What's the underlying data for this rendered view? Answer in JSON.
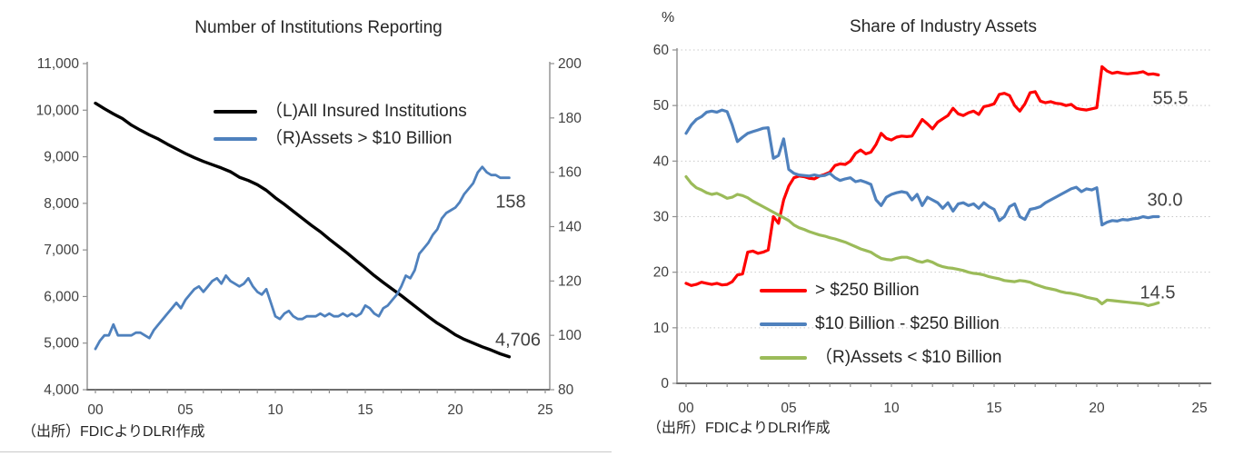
{
  "page": {
    "background": "#ffffff"
  },
  "chart_data": [
    {
      "type": "line",
      "title": "Number of Institutions Reporting",
      "source": "（出所）FDICよりDLRI作成",
      "grid": false,
      "x_tick_labels": [
        "00",
        "05",
        "10",
        "15",
        "20",
        "25"
      ],
      "x_range": [
        2000,
        2025
      ],
      "y_axis_left": {
        "min": 4000,
        "max": 11000,
        "tick_values": [
          11000,
          10000,
          9000,
          8000,
          7000,
          6000,
          5000,
          4000
        ],
        "tick_labels": [
          "11,000",
          "10,000",
          "9,000",
          "8,000",
          "7,000",
          "6,000",
          "5,000",
          "4,000"
        ]
      },
      "y_axis_right": {
        "min": 80,
        "max": 200,
        "tick_values": [
          200,
          180,
          160,
          140,
          120,
          100,
          80
        ],
        "tick_labels": [
          "200",
          "180",
          "160",
          "140",
          "120",
          "100",
          "80"
        ]
      },
      "legend": [
        {
          "label": "（L)All Insured Institutions",
          "color": "#000000"
        },
        {
          "label": "（R)Assets > $10 Billion",
          "color": "#4F81BD"
        }
      ],
      "annotations": [
        {
          "text": "158",
          "series": "assets-gt-10b"
        },
        {
          "text": "4,706",
          "series": "all-insured"
        }
      ],
      "series": [
        {
          "id": "all-insured",
          "name": "（L)All Insured Institutions",
          "axis": "left",
          "color": "#000000",
          "x_start": 2000,
          "x_step": 0.5,
          "values": [
            10150,
            10030,
            9920,
            9820,
            9680,
            9570,
            9470,
            9380,
            9270,
            9170,
            9070,
            8980,
            8900,
            8830,
            8760,
            8680,
            8560,
            8490,
            8400,
            8280,
            8120,
            7980,
            7830,
            7680,
            7530,
            7390,
            7230,
            7080,
            6930,
            6770,
            6610,
            6450,
            6300,
            6160,
            6020,
            5870,
            5720,
            5570,
            5430,
            5310,
            5180,
            5080,
            5000,
            4920,
            4850,
            4770,
            4706
          ]
        },
        {
          "id": "assets-gt-10b",
          "name": "（R)Assets > $10 Billion",
          "axis": "right",
          "color": "#4F81BD",
          "x_start": 2000,
          "x_step": 0.25,
          "values": [
            95,
            98,
            100,
            100,
            104,
            100,
            100,
            100,
            100,
            101,
            101,
            100,
            99,
            102,
            104,
            106,
            108,
            110,
            112,
            110,
            113,
            115,
            117,
            118,
            116,
            118,
            120,
            121,
            119,
            122,
            120,
            119,
            118,
            119,
            121,
            118,
            116,
            115,
            117,
            112,
            107,
            106,
            108,
            109,
            107,
            106,
            106,
            107,
            107,
            107,
            108,
            107,
            108,
            107,
            107,
            108,
            107,
            108,
            107,
            108,
            111,
            110,
            108,
            107,
            110,
            111,
            113,
            115,
            118,
            122,
            121,
            124,
            130,
            132,
            134,
            137,
            139,
            143,
            145,
            146,
            147,
            149,
            152,
            154,
            156,
            160,
            162,
            160,
            159,
            159,
            158,
            158,
            158
          ]
        }
      ]
    },
    {
      "type": "line",
      "title": "Share of Industry Assets",
      "unit": "%",
      "source": "（出所）FDICよりDLRI作成",
      "grid": true,
      "x_tick_labels": [
        "00",
        "05",
        "10",
        "15",
        "20",
        "25"
      ],
      "x_range": [
        2000,
        2025
      ],
      "y_axis_left": {
        "min": 0,
        "max": 60,
        "tick_values": [
          60,
          50,
          40,
          30,
          20,
          10,
          0
        ],
        "tick_labels": [
          "60",
          "50",
          "40",
          "30",
          "20",
          "10",
          "0"
        ]
      },
      "legend": [
        {
          "label": "> $250 Billion",
          "color": "#FF0000"
        },
        {
          "label": "$10 Billion - $250 Billion",
          "color": "#4F81BD"
        },
        {
          "label": "（R)Assets < $10 Billion",
          "color": "#9BBB59"
        }
      ],
      "annotations": [
        {
          "text": "55.5",
          "series": "gt-250b"
        },
        {
          "text": "30.0",
          "series": "10b-to-250b"
        },
        {
          "text": "14.5",
          "series": "lt-10b"
        }
      ],
      "series": [
        {
          "id": "gt-250b",
          "name": "> $250 Billion",
          "axis": "left",
          "color": "#FF0000",
          "x_start": 2000,
          "x_step": 0.25,
          "values": [
            18.0,
            17.6,
            17.8,
            18.2,
            18.0,
            17.8,
            18.0,
            17.7,
            17.8,
            18.3,
            19.5,
            19.7,
            23.6,
            23.8,
            23.4,
            23.6,
            24.0,
            30.0,
            28.8,
            33.0,
            35.5,
            37.0,
            37.3,
            37.2,
            36.9,
            36.8,
            37.3,
            37.6,
            38.0,
            39.2,
            39.5,
            39.4,
            40.0,
            41.4,
            42.0,
            41.3,
            41.6,
            43.0,
            45.0,
            44.1,
            43.8,
            44.3,
            44.5,
            44.4,
            44.5,
            46.0,
            47.5,
            46.7,
            45.8,
            47.0,
            47.6,
            48.2,
            49.5,
            48.5,
            48.2,
            48.7,
            49.0,
            48.4,
            49.8,
            50.0,
            50.3,
            52.0,
            52.2,
            51.8,
            50.0,
            49.0,
            50.3,
            52.3,
            52.5,
            50.8,
            50.5,
            50.7,
            50.4,
            50.3,
            50.0,
            50.2,
            49.5,
            49.3,
            49.2,
            49.4,
            49.6,
            57.0,
            56.2,
            55.8,
            56.0,
            55.8,
            55.7,
            55.8,
            55.9,
            56.1,
            55.6,
            55.7,
            55.5
          ]
        },
        {
          "id": "10b-to-250b",
          "name": "$10 Billion - $250 Billion",
          "axis": "left",
          "color": "#4F81BD",
          "x_start": 2000,
          "x_step": 0.25,
          "values": [
            45.0,
            46.5,
            47.5,
            48.0,
            48.8,
            49.0,
            48.8,
            49.2,
            48.9,
            46.5,
            43.5,
            44.3,
            45.0,
            45.3,
            45.6,
            45.9,
            46.0,
            40.5,
            41.0,
            44.0,
            38.5,
            37.8,
            37.5,
            37.4,
            37.3,
            37.5,
            37.3,
            37.4,
            37.8,
            37.0,
            36.5,
            36.8,
            37.0,
            36.3,
            36.5,
            36.2,
            35.8,
            33.0,
            32.0,
            33.5,
            34.0,
            34.3,
            34.5,
            34.3,
            33.0,
            34.0,
            32.0,
            33.5,
            33.0,
            32.5,
            31.5,
            32.5,
            31.0,
            32.3,
            32.5,
            32.0,
            32.3,
            31.5,
            32.5,
            31.8,
            31.3,
            29.3,
            30.0,
            31.8,
            32.3,
            30.0,
            29.5,
            31.3,
            31.5,
            31.8,
            32.5,
            33.0,
            33.5,
            34.0,
            34.5,
            35.0,
            35.3,
            34.5,
            35.0,
            34.8,
            35.2,
            28.5,
            29.0,
            29.3,
            29.2,
            29.5,
            29.4,
            29.6,
            29.7,
            30.0,
            29.8,
            30.0,
            30.0
          ]
        },
        {
          "id": "lt-10b",
          "name": "（R)Assets < $10 Billion",
          "axis": "left",
          "color": "#9BBB59",
          "x_start": 2000,
          "x_step": 0.25,
          "values": [
            37.2,
            36.0,
            35.2,
            34.8,
            34.3,
            34.0,
            34.2,
            33.8,
            33.3,
            33.5,
            34.0,
            33.8,
            33.4,
            32.8,
            32.3,
            31.8,
            31.3,
            30.8,
            30.3,
            29.8,
            29.3,
            28.5,
            28.0,
            27.7,
            27.3,
            27.0,
            26.7,
            26.5,
            26.2,
            26.0,
            25.7,
            25.4,
            25.0,
            24.6,
            24.2,
            23.9,
            23.6,
            23.0,
            22.5,
            22.3,
            22.2,
            22.5,
            22.7,
            22.7,
            22.4,
            22.0,
            21.8,
            22.1,
            21.8,
            21.3,
            21.0,
            20.8,
            20.7,
            20.5,
            20.3,
            20.0,
            19.8,
            19.7,
            19.5,
            19.2,
            19.0,
            18.8,
            18.5,
            18.4,
            18.3,
            18.5,
            18.4,
            18.2,
            17.8,
            17.5,
            17.2,
            17.0,
            16.8,
            16.5,
            16.3,
            16.2,
            16.0,
            15.8,
            15.5,
            15.3,
            15.1,
            14.3,
            15.0,
            14.9,
            14.8,
            14.7,
            14.6,
            14.5,
            14.4,
            14.3,
            14.0,
            14.2,
            14.5
          ]
        }
      ]
    }
  ]
}
